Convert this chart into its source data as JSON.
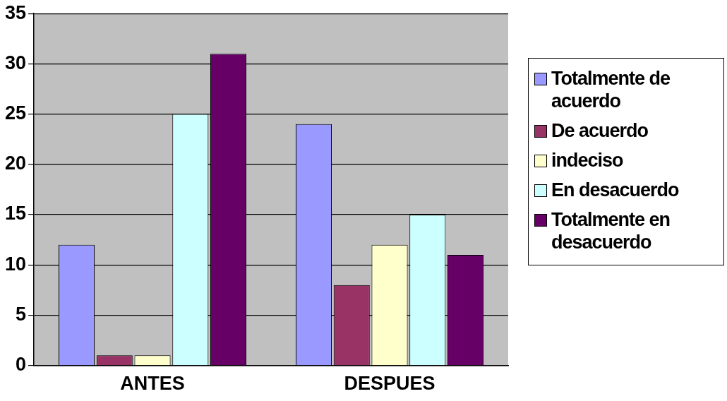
{
  "chart_data": {
    "type": "bar",
    "categories": [
      "ANTES",
      "DESPUES"
    ],
    "series": [
      {
        "name": "Totalmente de acuerdo",
        "color": "#9999ff",
        "values": [
          12,
          24
        ]
      },
      {
        "name": "De acuerdo",
        "color": "#993366",
        "values": [
          1,
          8
        ]
      },
      {
        "name": "indeciso",
        "color": "#ffffcc",
        "values": [
          1,
          12
        ]
      },
      {
        "name": "En desacuerdo",
        "color": "#ccffff",
        "values": [
          25,
          15
        ]
      },
      {
        "name": "Totalmente en desacuerdo",
        "color": "#660066",
        "values": [
          31,
          11
        ]
      }
    ],
    "ylim": [
      0,
      35
    ],
    "yticks": [
      0,
      5,
      10,
      15,
      20,
      25,
      30,
      35
    ],
    "grid": true,
    "legend": "right"
  }
}
